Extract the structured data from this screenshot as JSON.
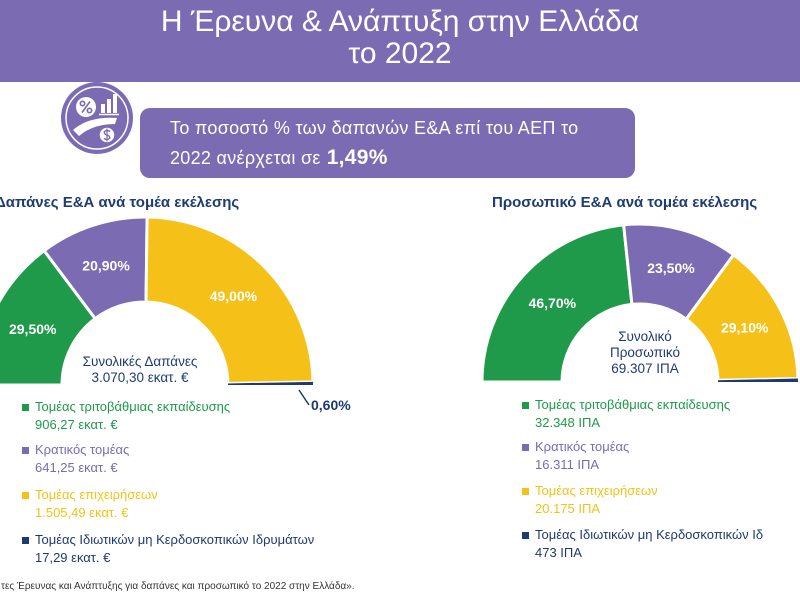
{
  "header": {
    "title_line1": "Η Έρευνα & Ανάπτυξη στην Ελλάδα",
    "title_line2": "το 2022"
  },
  "highlight": {
    "icon": "percent-chart-coin-icon",
    "line1": "Το ποσοστό % των δαπανών Ε&Α επί του ΑΕΠ το",
    "line2": "2022 ανέρχεται σε",
    "value": "1,49%"
  },
  "colors": {
    "header_bg": "#7b6bb2",
    "title_text": "#1f3b73",
    "higher_education": "#1e9a4a",
    "government": "#7b6bb2",
    "business": "#f5c118",
    "private_nonprofit": "#1f3a70"
  },
  "chart_data": [
    {
      "type": "pie",
      "variant": "half-donut",
      "title": "Δαπάνες Ε&Α ανά τομέα εκέλεσης",
      "center_label": [
        "Συνολικές Δαπάνες",
        "3.070,30 εκατ. €"
      ],
      "legend_position": "bottom",
      "slices": [
        {
          "label": "Τομέας τριτοβάθμιας εκπαίδευσης",
          "value": 29.5,
          "value_label": "29,50%",
          "amount": "906,27 εκατ. €",
          "color": "#1e9a4a"
        },
        {
          "label": "Κρατικός τομέας",
          "value": 20.9,
          "value_label": "20,90%",
          "amount": "641,25 εκατ. €",
          "color": "#7b6bb2"
        },
        {
          "label": "Τομέας επιχειρήσεων",
          "value": 49.0,
          "value_label": "49,00%",
          "amount": "1.505,49 εκατ. €",
          "color": "#f5c118"
        },
        {
          "label": "Τομέας Ιδιωτικών μη Κερδοσκοπικών Ιδρυμάτων",
          "value": 0.6,
          "value_label": "0,60%",
          "amount": "17,29 εκατ. €",
          "color": "#1f3a70"
        }
      ]
    },
    {
      "type": "pie",
      "variant": "half-donut",
      "title": "Προσωπικό Ε&Α ανά τομέα εκέλεσης",
      "center_label": [
        "Συνολικό",
        "Προσωπικό",
        "69.307 ΙΠΑ"
      ],
      "legend_position": "bottom",
      "slices": [
        {
          "label": "Τομέας τριτοβάθμιας εκπαίδευσης",
          "value": 46.7,
          "value_label": "46,70%",
          "amount": "32.348 ΙΠΑ",
          "color": "#1e9a4a"
        },
        {
          "label": "Κρατικός τομέας",
          "value": 23.5,
          "value_label": "23,50%",
          "amount": "16.311 ΙΠΑ",
          "color": "#7b6bb2"
        },
        {
          "label": "Τομέας επιχειρήσεων",
          "value": 29.1,
          "value_label": "29,10%",
          "amount": "20.175 ΙΠΑ",
          "color": "#f5c118"
        },
        {
          "label": "Τομέας Ιδιωτικών μη Κερδοσκοπικών Ιδ",
          "value": 0.7,
          "amount": "473 ΙΠΑ",
          "color": "#1f3a70"
        }
      ]
    }
  ],
  "footnote": "τες Έρευνας και Ανάπτυξης για δαπάνες και προσωπικό το 2022 στην Ελλάδα»."
}
